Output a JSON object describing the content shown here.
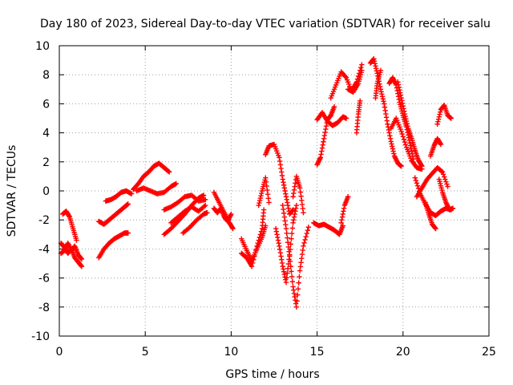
{
  "chart_data": {
    "type": "scatter",
    "title": "Day 180 of 2023, Sidereal Day-to-day VTEC variation (SDTVAR) for receiver salu",
    "xlabel": "GPS time / hours",
    "ylabel": "SDTVAR / TECUs",
    "xlim": [
      0,
      25
    ],
    "ylim": [
      -10,
      10
    ],
    "xticks": [
      0,
      5,
      10,
      15,
      20,
      25
    ],
    "yticks": [
      -10,
      -8,
      -6,
      -4,
      -2,
      0,
      2,
      4,
      6,
      8,
      10
    ],
    "grid": true,
    "marker": "+",
    "color": "#ff0000",
    "series": [
      {
        "name": "seg1",
        "x": [
          0.1,
          0.3,
          0.5,
          0.7,
          0.9,
          1.1,
          1.3
        ],
        "y": [
          -3.6,
          -3.9,
          -4.3,
          -4.0,
          -4.6,
          -4.9,
          -5.2
        ]
      },
      {
        "name": "seg2",
        "x": [
          0.1,
          0.3,
          0.5,
          0.7,
          0.9,
          1.1,
          1.3
        ],
        "y": [
          -4.3,
          -4.1,
          -3.6,
          -4.1,
          -3.8,
          -4.4,
          -4.7
        ]
      },
      {
        "name": "seg3",
        "x": [
          0.2,
          0.4,
          0.6,
          0.8,
          1.0
        ],
        "y": [
          -1.6,
          -1.4,
          -1.8,
          -2.6,
          -3.4
        ]
      },
      {
        "name": "seg4",
        "x": [
          2.3,
          2.6,
          2.9,
          3.2,
          3.5,
          3.8,
          4.0
        ],
        "y": [
          -4.6,
          -4.0,
          -3.6,
          -3.3,
          -3.1,
          -2.9,
          -2.9
        ]
      },
      {
        "name": "seg5",
        "x": [
          2.3,
          2.6,
          2.9,
          3.2,
          3.5,
          3.8,
          4.0
        ],
        "y": [
          -2.1,
          -2.3,
          -2.0,
          -1.7,
          -1.4,
          -1.1,
          -0.9
        ]
      },
      {
        "name": "seg6",
        "x": [
          2.7,
          3.0,
          3.3,
          3.6,
          3.9,
          4.2
        ],
        "y": [
          -0.7,
          -0.6,
          -0.4,
          -0.1,
          0.0,
          -0.2
        ]
      },
      {
        "name": "seg7",
        "x": [
          4.3,
          4.6,
          4.9,
          5.2,
          5.5,
          5.8,
          6.1,
          6.4
        ],
        "y": [
          0.1,
          0.5,
          1.0,
          1.3,
          1.7,
          1.9,
          1.6,
          1.3
        ]
      },
      {
        "name": "seg8",
        "x": [
          4.5,
          4.9,
          5.3,
          5.7,
          6.1,
          6.5,
          6.8
        ],
        "y": [
          0.0,
          0.2,
          0.0,
          -0.2,
          -0.1,
          0.3,
          0.5
        ]
      },
      {
        "name": "seg9",
        "x": [
          6.1,
          6.5,
          6.9,
          7.3,
          7.7,
          8.1,
          8.4
        ],
        "y": [
          -3.0,
          -2.6,
          -2.1,
          -1.6,
          -1.0,
          -0.5,
          -0.3
        ]
      },
      {
        "name": "seg10",
        "x": [
          6.1,
          6.5,
          6.9,
          7.3,
          7.7,
          8.1,
          8.5
        ],
        "y": [
          -1.3,
          -1.1,
          -0.8,
          -0.4,
          -0.3,
          -0.7,
          -0.6
        ]
      },
      {
        "name": "seg11",
        "x": [
          6.5,
          6.9,
          7.3,
          7.7,
          8.1,
          8.5
        ],
        "y": [
          -2.2,
          -1.8,
          -1.4,
          -1.1,
          -1.4,
          -1.0
        ]
      },
      {
        "name": "seg12",
        "x": [
          7.2,
          7.6,
          8.0,
          8.4,
          8.6
        ],
        "y": [
          -2.9,
          -2.5,
          -2.0,
          -1.6,
          -1.5
        ]
      },
      {
        "name": "seg13",
        "x": [
          9.0,
          9.3,
          9.6,
          9.9,
          10.1
        ],
        "y": [
          -0.1,
          -0.8,
          -1.5,
          -2.2,
          -2.6
        ]
      },
      {
        "name": "seg14",
        "x": [
          9.0,
          9.2,
          9.4,
          9.6,
          9.8,
          10.0
        ],
        "y": [
          -1.2,
          -1.5,
          -1.2,
          -1.8,
          -2.1,
          -1.6
        ]
      },
      {
        "name": "seg15",
        "x": [
          10.6,
          10.9,
          11.2,
          11.5,
          11.8,
          12.0
        ],
        "y": [
          -3.3,
          -4.1,
          -4.8,
          -4.0,
          -3.2,
          -2.4
        ]
      },
      {
        "name": "seg16",
        "x": [
          10.6,
          10.9,
          11.2,
          11.5,
          11.8,
          11.9
        ],
        "y": [
          -4.3,
          -4.6,
          -5.2,
          -3.8,
          -2.6,
          -1.3
        ]
      },
      {
        "name": "seg17",
        "x": [
          11.6,
          11.8,
          12.0,
          12.2
        ],
        "y": [
          -1.0,
          0.0,
          0.9,
          -0.8
        ]
      },
      {
        "name": "seg18",
        "x": [
          12.0,
          12.2,
          12.5,
          12.8,
          13.0,
          13.2,
          13.4,
          13.6
        ],
        "y": [
          2.5,
          3.1,
          3.2,
          2.3,
          0.8,
          -0.4,
          -1.6,
          -1.3
        ]
      },
      {
        "name": "seg19",
        "x": [
          12.6,
          12.8,
          13.0,
          13.2,
          13.4,
          13.6,
          13.8
        ],
        "y": [
          -2.6,
          -3.8,
          -5.2,
          -6.3,
          -4.4,
          -2.2,
          -1.0
        ]
      },
      {
        "name": "seg20",
        "x": [
          13.0,
          13.2,
          13.4,
          13.6,
          13.8,
          14.0,
          14.2,
          14.5
        ],
        "y": [
          -1.0,
          -2.6,
          -4.5,
          -6.6,
          -8.0,
          -5.5,
          -3.8,
          -2.5
        ]
      },
      {
        "name": "seg21",
        "x": [
          13.6,
          13.8,
          14.0,
          14.2
        ],
        "y": [
          -0.4,
          1.0,
          0.2,
          -1.5
        ]
      },
      {
        "name": "seg22",
        "x": [
          14.8,
          15.1,
          15.4,
          15.7,
          16.0,
          16.3,
          16.5
        ],
        "y": [
          -2.2,
          -2.4,
          -2.3,
          -2.5,
          -2.7,
          -3.0,
          -2.4
        ]
      },
      {
        "name": "seg23",
        "x": [
          16.4,
          16.6,
          16.8
        ],
        "y": [
          -2.2,
          -1.0,
          -0.4
        ]
      },
      {
        "name": "seg24",
        "x": [
          15.0,
          15.2,
          15.4,
          15.6,
          15.8,
          16.0
        ],
        "y": [
          1.8,
          2.3,
          3.6,
          4.9,
          5.2,
          5.8
        ]
      },
      {
        "name": "seg25",
        "x": [
          15.0,
          15.3,
          15.6,
          15.9,
          16.2,
          16.5,
          16.7
        ],
        "y": [
          4.9,
          5.4,
          4.8,
          4.5,
          4.7,
          5.1,
          5.0
        ]
      },
      {
        "name": "seg26",
        "x": [
          15.8,
          16.1,
          16.4,
          16.7,
          17.0,
          17.3,
          17.6
        ],
        "y": [
          6.4,
          7.3,
          8.2,
          7.8,
          6.9,
          7.5,
          8.7
        ]
      },
      {
        "name": "seg27",
        "x": [
          16.8,
          17.1,
          17.4,
          17.6
        ],
        "y": [
          7.0,
          6.8,
          7.4,
          8.3
        ]
      },
      {
        "name": "seg28",
        "x": [
          17.3,
          17.4,
          17.5
        ],
        "y": [
          4.0,
          5.3,
          6.2
        ]
      },
      {
        "name": "seg29",
        "x": [
          18.1,
          18.3,
          18.5,
          18.7,
          18.9,
          19.1,
          19.3,
          19.5,
          19.7,
          19.9
        ],
        "y": [
          8.8,
          9.1,
          8.1,
          7.0,
          6.0,
          4.6,
          3.4,
          2.4,
          1.9,
          1.7
        ]
      },
      {
        "name": "seg30",
        "x": [
          18.4,
          18.5,
          18.7
        ],
        "y": [
          6.4,
          7.4,
          8.3
        ]
      },
      {
        "name": "seg31",
        "x": [
          19.2,
          19.4,
          19.6,
          19.8,
          20.0,
          20.2,
          20.4,
          20.6
        ],
        "y": [
          7.4,
          7.8,
          7.3,
          6.1,
          5.2,
          4.4,
          3.3,
          2.2
        ]
      },
      {
        "name": "seg32",
        "x": [
          19.3,
          19.6,
          19.9,
          20.2,
          20.5,
          20.8,
          21.1
        ],
        "y": [
          4.3,
          5.0,
          4.1,
          3.0,
          2.1,
          1.6,
          1.5
        ]
      },
      {
        "name": "seg33",
        "x": [
          19.7,
          19.9,
          20.1,
          20.3,
          20.5,
          20.7,
          20.9,
          21.1
        ],
        "y": [
          7.5,
          6.4,
          5.3,
          4.3,
          3.6,
          2.8,
          2.1,
          1.7
        ]
      },
      {
        "name": "seg34",
        "x": [
          20.7,
          21.0,
          21.3,
          21.6,
          21.9,
          22.2,
          22.5,
          22.8
        ],
        "y": [
          0.9,
          -0.2,
          -0.9,
          -1.5,
          -1.7,
          -1.4,
          -1.2,
          -1.3
        ]
      },
      {
        "name": "seg35",
        "x": [
          20.8,
          21.1,
          21.4,
          21.7,
          22.0,
          22.3,
          22.6
        ],
        "y": [
          -0.4,
          0.2,
          0.8,
          1.2,
          1.6,
          1.3,
          0.3
        ]
      },
      {
        "name": "seg36",
        "x": [
          21.3,
          21.5,
          21.7,
          21.9
        ],
        "y": [
          -0.8,
          -1.6,
          -2.3,
          -2.6
        ]
      },
      {
        "name": "seg37",
        "x": [
          21.6,
          21.8,
          22.0,
          22.2
        ],
        "y": [
          2.4,
          3.1,
          3.6,
          3.2
        ]
      },
      {
        "name": "seg38",
        "x": [
          22.0,
          22.2,
          22.4,
          22.6,
          22.8
        ],
        "y": [
          4.6,
          5.6,
          5.9,
          5.2,
          5.0
        ]
      },
      {
        "name": "seg39",
        "x": [
          22.1,
          22.3,
          22.5,
          22.7,
          22.9
        ],
        "y": [
          0.8,
          -0.1,
          -0.8,
          -1.3,
          -1.2
        ]
      }
    ]
  }
}
